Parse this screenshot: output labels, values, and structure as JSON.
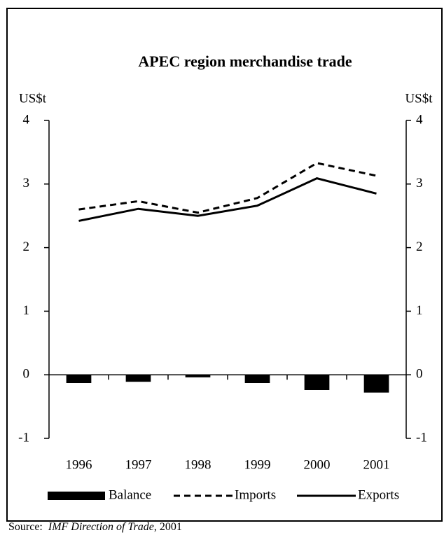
{
  "chart_data": {
    "type": "bar-line",
    "title": "APEC region merchandise trade",
    "y_label": "US$t",
    "y2_label": "US$t",
    "categories": [
      "1996",
      "1997",
      "1998",
      "1999",
      "2000",
      "2001"
    ],
    "series": [
      {
        "name": "Balance",
        "type": "bar",
        "color": "#000000",
        "values": [
          -0.13,
          -0.11,
          -0.04,
          -0.13,
          -0.24,
          -0.28
        ]
      },
      {
        "name": "Imports",
        "type": "line",
        "dash": true,
        "color": "#000000",
        "values": [
          2.6,
          2.73,
          2.55,
          2.78,
          3.33,
          3.13
        ]
      },
      {
        "name": "Exports",
        "type": "line",
        "dash": false,
        "color": "#000000",
        "values": [
          2.42,
          2.61,
          2.5,
          2.66,
          3.09,
          2.85
        ]
      }
    ],
    "ylim": [
      -1,
      4
    ],
    "yticks": [
      -1,
      0,
      1,
      2,
      3,
      4
    ],
    "y2lim": [
      -1,
      4
    ],
    "y2ticks": [
      -1,
      0,
      1,
      2,
      3,
      4
    ],
    "source": {
      "prefix": "Source:",
      "title": "IMF Direction of Trade",
      "suffix": ", 2001"
    }
  }
}
